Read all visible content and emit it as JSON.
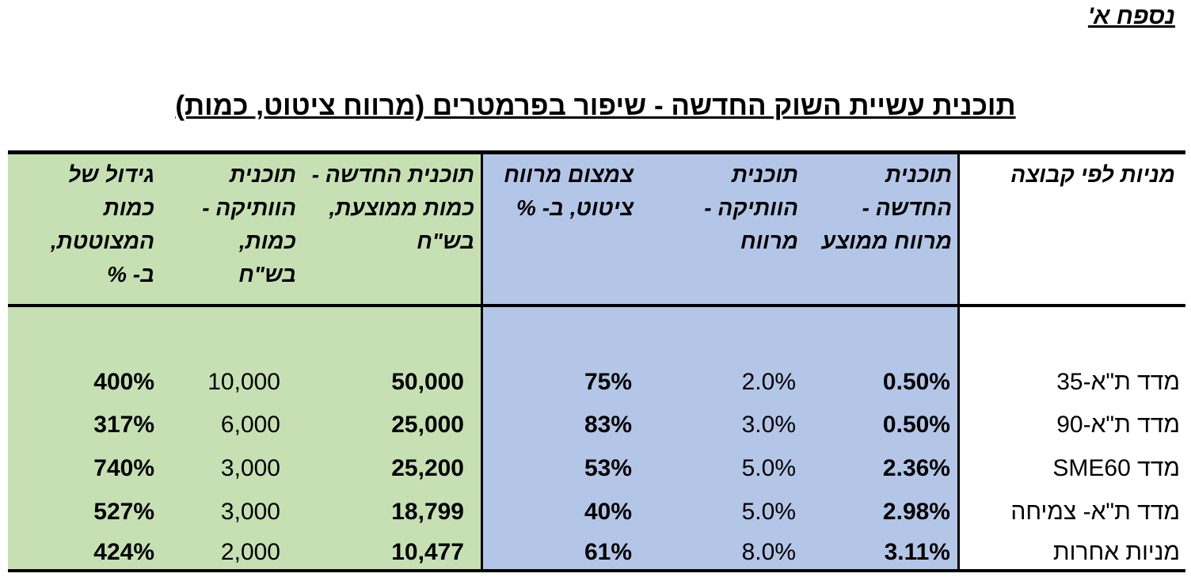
{
  "appendix_label": "נספח א'",
  "title": "תוכנית עשיית השוק החדשה - שיפור בפרמטרים (מרווח ציטוט, כמות)",
  "headers": {
    "group": "מניות לפי קבוצה",
    "new_spread": "תוכנית החדשה - מרווח ממוצע",
    "old_spread": "תוכנית הוותיקה - מרווח",
    "spread_reduction": "צמצום מרווח ציטוט, ב- %",
    "new_qty": "תוכנית החדשה - כמות ממוצעת, בש\"ח",
    "old_qty": "תוכנית הוותיקה - כמות, בש\"ח",
    "qty_growth": "גידול של כמות המצוטטת, ב- %"
  },
  "rows": [
    {
      "group": "מדד ת\"א-35",
      "new_spread": "0.50%",
      "old_spread": "2.0%",
      "spread_reduction": "75%",
      "new_qty": "50,000",
      "old_qty": "10,000",
      "qty_growth": "400%"
    },
    {
      "group": "מדד ת\"א-90",
      "new_spread": "0.50%",
      "old_spread": "3.0%",
      "spread_reduction": "83%",
      "new_qty": "25,000",
      "old_qty": "6,000",
      "qty_growth": "317%"
    },
    {
      "group": "מדד SME60",
      "new_spread": "2.36%",
      "old_spread": "5.0%",
      "spread_reduction": "53%",
      "new_qty": "25,200",
      "old_qty": "3,000",
      "qty_growth": "740%"
    },
    {
      "group": "מדד ת\"א- צמיחה",
      "new_spread": "2.98%",
      "old_spread": "5.0%",
      "spread_reduction": "40%",
      "new_qty": "18,799",
      "old_qty": "3,000",
      "qty_growth": "527%"
    },
    {
      "group": "מניות אחרות",
      "new_spread": "3.11%",
      "old_spread": "8.0%",
      "spread_reduction": "61%",
      "new_qty": "10,477",
      "old_qty": "2,000",
      "qty_growth": "424%"
    }
  ]
}
